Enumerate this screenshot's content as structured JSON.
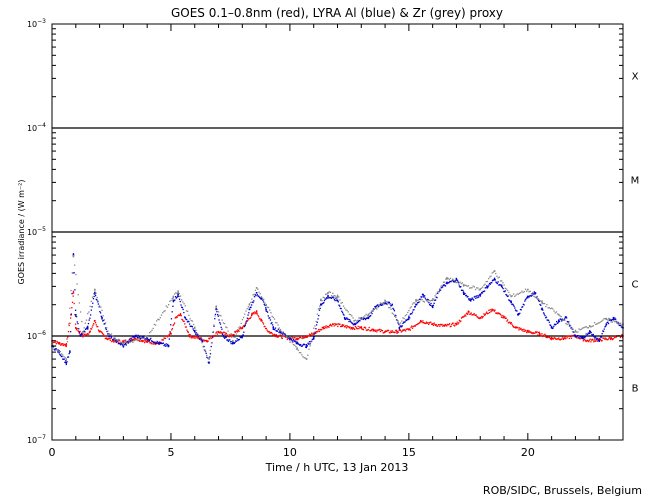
{
  "chart_data": {
    "type": "scatter",
    "title": "GOES 0.1–0.8nm (red), LYRA Al (blue) & Zr (grey) proxy",
    "xlabel": "Time / h UTC, 13 Jan 2013",
    "ylabel": "GOES irradiance / (W m⁻²)",
    "xlim": [
      0,
      24
    ],
    "ylim": [
      1e-07,
      0.001
    ],
    "yscale": "log",
    "x_ticks": [
      0,
      5,
      10,
      15,
      20
    ],
    "y_ticks": [
      {
        "value": 1e-07,
        "mant": "10",
        "exp": "−7"
      },
      {
        "value": 1e-06,
        "mant": "10",
        "exp": "−6"
      },
      {
        "value": 1e-05,
        "mant": "10",
        "exp": "−5"
      },
      {
        "value": 0.0001,
        "mant": "10",
        "exp": "−4"
      },
      {
        "value": 0.001,
        "mant": "10",
        "exp": "−3"
      }
    ],
    "flare_class_labels": [
      {
        "label": "B",
        "value": 3.2e-07
      },
      {
        "label": "C",
        "value": 3.2e-06
      },
      {
        "label": "M",
        "value": 3.2e-05
      },
      {
        "label": "X",
        "value": 0.00032
      }
    ],
    "threshold_lines": [
      1e-06,
      1e-05,
      0.0001
    ],
    "colors": {
      "goes": "#ff0000",
      "lyra_al": "#0000cc",
      "lyra_zr": "#888888",
      "axes": "#000000"
    },
    "series": [
      {
        "name": "GOES 0.1–0.8nm",
        "color": "#ff0000",
        "x": [
          0,
          0.3,
          0.6,
          0.8,
          0.9,
          1.0,
          1.3,
          1.6,
          1.8,
          2.0,
          2.3,
          2.6,
          3.0,
          3.5,
          4.0,
          4.5,
          5.0,
          5.2,
          5.4,
          5.8,
          6.2,
          6.5,
          7.0,
          7.5,
          8.0,
          8.4,
          8.6,
          8.8,
          9.1,
          9.5,
          10.0,
          10.3,
          10.7,
          11.0,
          11.4,
          11.8,
          12.2,
          12.6,
          13.0,
          13.5,
          14.0,
          14.5,
          15.0,
          15.5,
          16.0,
          16.5,
          17.0,
          17.5,
          18.0,
          18.5,
          19.0,
          19.5,
          20.0,
          20.5,
          21.0,
          21.5,
          22.0,
          22.5,
          23.0,
          23.5,
          24.0
        ],
        "y": [
          9e-07,
          8.5e-07,
          8.2e-07,
          1.6e-06,
          2.6e-06,
          1.2e-06,
          1e-06,
          1.1e-06,
          1.4e-06,
          1.1e-06,
          9.5e-07,
          9e-07,
          8.8e-07,
          9.5e-07,
          8.8e-07,
          8.5e-07,
          1.05e-06,
          1.5e-06,
          1.6e-06,
          1e-06,
          9.5e-07,
          9e-07,
          1.1e-06,
          1e-06,
          1.2e-06,
          1.6e-06,
          1.7e-06,
          1.4e-06,
          1.1e-06,
          1e-06,
          9.5e-07,
          9.5e-07,
          1e-06,
          1.05e-06,
          1.2e-06,
          1.3e-06,
          1.25e-06,
          1.2e-06,
          1.2e-06,
          1.15e-06,
          1.1e-06,
          1.1e-06,
          1.15e-06,
          1.4e-06,
          1.3e-06,
          1.25e-06,
          1.3e-06,
          1.7e-06,
          1.5e-06,
          1.8e-06,
          1.5e-06,
          1.2e-06,
          1.1e-06,
          1.05e-06,
          9.5e-07,
          9.5e-07,
          1e-06,
          9e-07,
          9.2e-07,
          9.5e-07,
          1e-06
        ]
      },
      {
        "name": "LYRA Al proxy",
        "color": "#0000cc",
        "x": [
          0,
          0.3,
          0.6,
          0.75,
          0.9,
          1.0,
          1.2,
          1.5,
          1.8,
          2.1,
          2.4,
          2.7,
          3.0,
          3.5,
          4.0,
          4.5,
          4.9,
          5.1,
          5.3,
          5.6,
          6.0,
          6.3,
          6.6,
          6.9,
          7.2,
          7.6,
          8.0,
          8.3,
          8.6,
          8.8,
          9.0,
          9.3,
          9.6,
          10.0,
          10.3,
          10.7,
          11.0,
          11.3,
          11.6,
          12.0,
          12.3,
          12.7,
          13.0,
          13.3,
          13.6,
          14.0,
          14.3,
          14.6,
          15.0,
          15.3,
          15.6,
          16.0,
          16.3,
          16.6,
          17.0,
          17.3,
          17.6,
          18.0,
          18.3,
          18.6,
          18.9,
          19.3,
          19.6,
          20.0,
          20.3,
          20.6,
          21.0,
          21.3,
          21.6,
          22.0,
          22.3,
          22.6,
          23.0,
          23.3,
          23.6,
          24.0
        ],
        "y": [
          8e-07,
          7e-07,
          5.5e-07,
          7e-07,
          6e-06,
          1.6e-06,
          1e-06,
          1.2e-06,
          2.6e-06,
          1.5e-06,
          1e-06,
          9e-07,
          8e-07,
          1e-06,
          9.5e-07,
          8.5e-07,
          8e-07,
          2.2e-06,
          2.5e-06,
          1.5e-06,
          1.1e-06,
          9e-07,
          5.5e-07,
          1.8e-06,
          1e-06,
          8.5e-07,
          1e-06,
          1.8e-06,
          2.6e-06,
          2.3e-06,
          1.8e-06,
          1.2e-06,
          1.1e-06,
          9.5e-07,
          8.5e-07,
          8e-07,
          9.5e-07,
          2e-06,
          2.4e-06,
          2.2e-06,
          1.5e-06,
          1.3e-06,
          1.45e-06,
          1.5e-06,
          1.9e-06,
          2.1e-06,
          2e-06,
          1.2e-06,
          1.5e-06,
          2e-06,
          2.5e-06,
          1.9e-06,
          2.8e-06,
          3.2e-06,
          3.5e-06,
          2.6e-06,
          2.2e-06,
          2.5e-06,
          3e-06,
          3.5e-06,
          3e-06,
          2.1e-06,
          1.6e-06,
          2.4e-06,
          2.6e-06,
          1.8e-06,
          1.2e-06,
          1.4e-06,
          1.5e-06,
          1e-06,
          9.5e-07,
          1.1e-06,
          9e-07,
          1.3e-06,
          1.5e-06,
          1.2e-06
        ]
      },
      {
        "name": "LYRA Zr proxy",
        "color": "#888888",
        "x": [
          0,
          0.6,
          0.9,
          1.3,
          1.8,
          2.4,
          3.0,
          4.0,
          5.1,
          5.3,
          6.0,
          6.6,
          6.9,
          7.6,
          8.3,
          8.6,
          9.0,
          9.6,
          10.3,
          10.7,
          11.3,
          11.6,
          12.0,
          12.7,
          13.3,
          14.0,
          14.6,
          15.3,
          16.0,
          16.6,
          17.3,
          18.0,
          18.6,
          19.3,
          20.0,
          20.6,
          21.3,
          22.0,
          22.6,
          23.3,
          24.0
        ],
        "y": [
          8.5e-07,
          6e-07,
          5.8e-06,
          1.1e-06,
          2.8e-06,
          1.05e-06,
          8.5e-07,
          9.8e-07,
          2.4e-06,
          2.7e-06,
          1.2e-06,
          6e-07,
          1.9e-06,
          9e-07,
          2e-06,
          2.9e-06,
          2e-06,
          1.15e-06,
          7.5e-07,
          6e-07,
          2.2e-06,
          2.6e-06,
          2.4e-06,
          1.4e-06,
          1.6e-06,
          2.2e-06,
          1.3e-06,
          2.2e-06,
          2.2e-06,
          3.6e-06,
          3.1e-06,
          2.8e-06,
          4.2e-06,
          2.4e-06,
          2.8e-06,
          2.1e-06,
          1.6e-06,
          1.1e-06,
          1.25e-06,
          1.45e-06,
          1.3e-06
        ]
      }
    ]
  },
  "footer": {
    "credit": "ROB/SIDC, Brussels, Belgium"
  }
}
